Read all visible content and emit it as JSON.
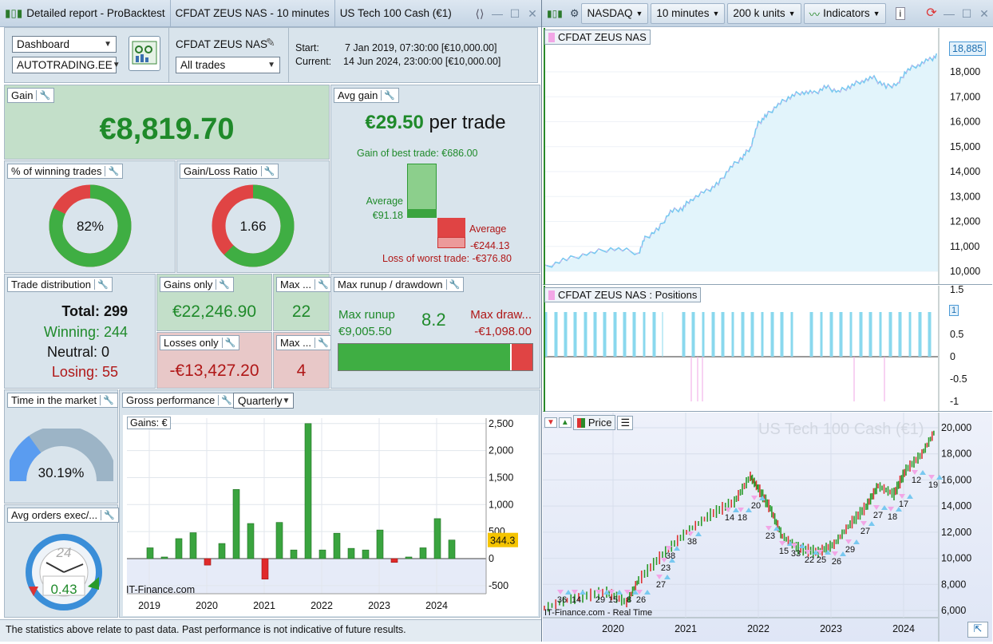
{
  "left_title": {
    "tabs": [
      "Detailed report - ProBacktest",
      "CFDAT ZEUS NAS - 10 minutes",
      "US Tech 100 Cash (€1)"
    ]
  },
  "header": {
    "dashboard_select": "Dashboard",
    "account_select": "AUTOTRADING.EE",
    "system_name": "CFDAT ZEUS NAS",
    "trades_select": "All trades",
    "start_label": "Start:",
    "start_value": "7 Jan 2019, 07:30:00 [€10,000.00]",
    "current_label": "Current:",
    "current_value": "14 Jun 2024, 23:00:00 [€10,000.00]"
  },
  "gain": {
    "label": "Gain",
    "value": "€8,819.70"
  },
  "avg_gain": {
    "label": "Avg gain",
    "value": "€29.50",
    "suffix": "per trade",
    "best": "Gain of best trade: €686.00",
    "avg_label": "Average",
    "avg_value": "€91.18",
    "avg_loss_label": "Average",
    "avg_loss_value": "-€244.13",
    "worst": "Loss of worst trade: -€376.80",
    "best_value": 686.0,
    "avg_gain_value": 91.18,
    "avg_loss_value_num": -244.13,
    "worst_value": -376.8
  },
  "winning_pct": {
    "label": "% of winning trades",
    "value": "82%",
    "fraction": 0.82
  },
  "gain_loss": {
    "label": "Gain/Loss Ratio",
    "value": "1.66",
    "fraction": 0.624
  },
  "distribution": {
    "label": "Trade distribution",
    "total": "Total: 299",
    "winning": "Winning: 244",
    "neutral": "Neutral: 0",
    "losing": "Losing: 55"
  },
  "gains_only": {
    "label": "Gains only",
    "value": "€22,246.90"
  },
  "losses_only": {
    "label": "Losses only",
    "value": "-€13,427.20"
  },
  "max_win": {
    "label": "Max ...",
    "value": "22"
  },
  "max_loss": {
    "label": "Max ...",
    "value": "4"
  },
  "runup": {
    "label": "Max runup / drawdown",
    "runup_label": "Max runup",
    "runup_value": "€9,005.50",
    "ratio": "8.2",
    "dd_label": "Max draw...",
    "dd_value": "-€1,098.00",
    "runup_fraction": 0.891
  },
  "time_market": {
    "label": "Time in the market",
    "value": "30.19%",
    "fraction": 0.3019
  },
  "gross": {
    "label": "Gross performance",
    "period": "Quarterly"
  },
  "avg_orders": {
    "label": "Avg orders exec/...",
    "value": "0.43",
    "clock_label": "24"
  },
  "gains_chart_label": "Gains: €",
  "watermark_left": "IT-Finance.com",
  "footer": "The statistics above relate to past data. Past performance is not indicative of future results.",
  "right_toolbar": {
    "market": "NASDAQ",
    "timeframe": "10 minutes",
    "units": "200 k units",
    "indicators": "Indicators"
  },
  "equity_label": "CFDAT ZEUS NAS",
  "equity_last": "18,885",
  "positions_label": "CFDAT ZEUS NAS : Positions",
  "positions_last": "1",
  "price_label": "Price",
  "price_watermark": "US Tech 100 Cash (€1)",
  "price_footer": "IT-Finance.com - Real Time",
  "price_x_ticks": [
    "2020",
    "2021",
    "2022",
    "2023",
    "2024"
  ],
  "price_y_ticks": [
    "20,000",
    "18,000",
    "16,000",
    "14,000",
    "12,000",
    "10,000",
    "8,000",
    "6,000"
  ],
  "equity_y_ticks": [
    "18,000",
    "17,000",
    "16,000",
    "15,000",
    "14,000",
    "13,000",
    "12,000",
    "11,000",
    "10,000"
  ],
  "pos_y_ticks": [
    "1.5",
    "1",
    "0.5",
    "0",
    "-0.5",
    "-1"
  ],
  "trade_counts": [
    "36",
    "14",
    "29",
    "15",
    "8",
    "26",
    "27",
    "23",
    "38",
    "38",
    "14",
    "18",
    "20",
    "23",
    "15",
    "33",
    "22",
    "25",
    "26",
    "29",
    "27",
    "27",
    "18",
    "17",
    "12",
    "19"
  ],
  "chart_data": {
    "type": "bar",
    "title": "Gains: €",
    "x_ticks": [
      "2019",
      "2020",
      "2021",
      "2022",
      "2023",
      "2024"
    ],
    "y_ticks": [
      2500,
      2000,
      1500,
      1000,
      500,
      0,
      -500
    ],
    "ylim": [
      -650,
      2600
    ],
    "categories": [
      "2019Q1",
      "2019Q2",
      "2019Q3",
      "2019Q4",
      "2020Q1",
      "2020Q2",
      "2020Q3",
      "2020Q4",
      "2021Q1",
      "2021Q2",
      "2021Q3",
      "2021Q4",
      "2022Q1",
      "2022Q2",
      "2022Q3",
      "2022Q4",
      "2023Q1",
      "2023Q2",
      "2023Q3",
      "2023Q4",
      "2024Q1",
      "2024Q2"
    ],
    "values": [
      200,
      30,
      370,
      480,
      -120,
      280,
      1280,
      650,
      -380,
      670,
      160,
      2500,
      160,
      470,
      190,
      160,
      530,
      -70,
      30,
      200,
      740,
      344.3
    ],
    "last_value_label": "344.3"
  }
}
